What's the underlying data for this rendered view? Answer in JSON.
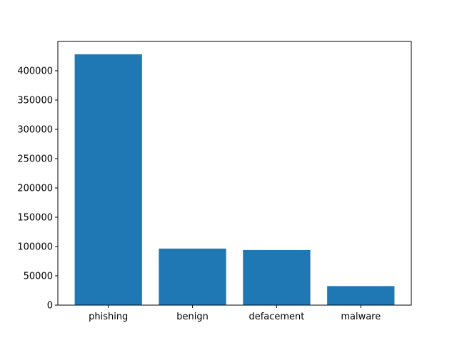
{
  "chart_data": {
    "type": "bar",
    "categories": [
      "phishing",
      "benign",
      "defacement",
      "malware"
    ],
    "values": [
      428000,
      96500,
      94000,
      32500
    ],
    "title": "",
    "xlabel": "",
    "ylabel": "",
    "ylim": [
      0,
      450000
    ],
    "yticks": [
      0,
      50000,
      100000,
      150000,
      200000,
      250000,
      300000,
      350000,
      400000
    ],
    "ytick_labels": [
      "0",
      "50000",
      "100000",
      "150000",
      "200000",
      "250000",
      "300000",
      "350000",
      "400000"
    ],
    "bar_color": "#1f77b4",
    "grid": false,
    "legend": "none"
  }
}
